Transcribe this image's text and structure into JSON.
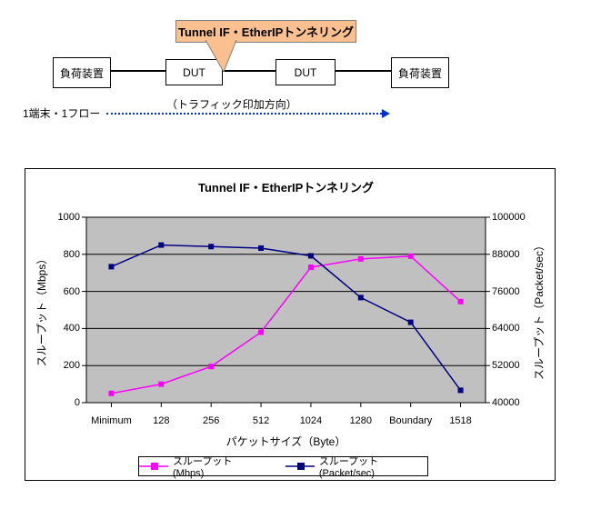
{
  "diagram": {
    "callout": {
      "label": "Tunnel IF・EtherIPトンネリング",
      "fill": "#FAC090",
      "border": "#808080"
    },
    "nodes": [
      {
        "label": "負荷装置"
      },
      {
        "label": "DUT"
      },
      {
        "label": "DUT"
      },
      {
        "label": "負荷装置"
      }
    ],
    "flow_label": "1端末・1フロー",
    "traffic_direction_label": "（トラフィック印加方向）",
    "arrow_color": "#0033CC"
  },
  "chart_data": {
    "type": "line",
    "title": "Tunnel IF・EtherIPトンネリング",
    "categories": [
      "Minimum",
      "128",
      "256",
      "512",
      "1024",
      "1280",
      "Boundary",
      "1518"
    ],
    "xlabel": "パケットサイズ（Byte）",
    "y_left": {
      "label": "スループット（Mbps）",
      "min": 0,
      "max": 1000,
      "step": 200
    },
    "y_right": {
      "label": "スループット（Packet/sec）",
      "min": 40000,
      "max": 100000,
      "step": 12000
    },
    "series": [
      {
        "name": "スループット(Mbps)",
        "axis": "left",
        "color": "#FF00FF",
        "values": [
          50,
          100,
          195,
          380,
          730,
          775,
          790,
          545
        ]
      },
      {
        "name": "スループット(Packet/sec)",
        "axis": "right",
        "color": "#000080",
        "values": [
          84000,
          91000,
          90500,
          90000,
          87500,
          74000,
          66000,
          44000
        ]
      }
    ],
    "plot_bg": "#C0C0C0",
    "grid": true,
    "legend_position": "bottom"
  }
}
